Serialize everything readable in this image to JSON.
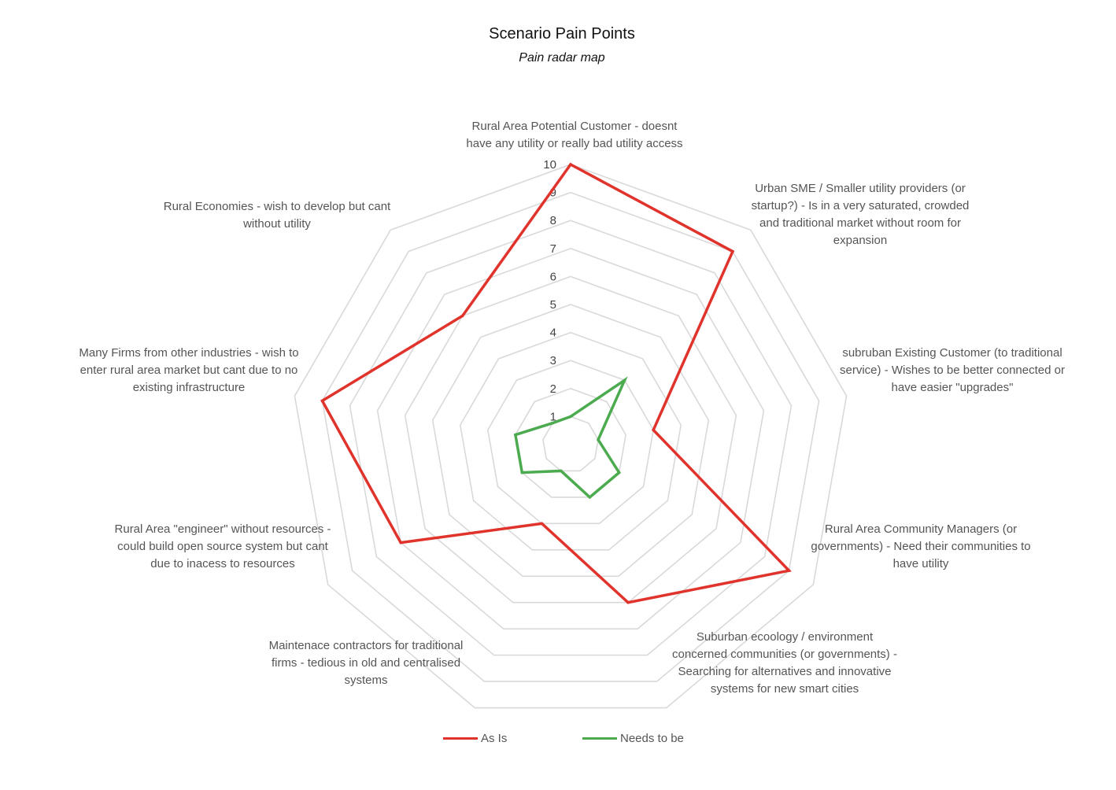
{
  "chart_data": {
    "type": "radar",
    "title": "Scenario Pain Points",
    "subtitle": "Pain radar map",
    "categories": [
      "Rural Area Potential Customer - doesnt have any utility or really bad utility access",
      "Urban SME / Smaller utility providers (or startup?) - Is in a very saturated, crowded and traditional market without room for expansion",
      "subruban Existing Customer (to traditional service) - Wishes to be better connected or have easier \"upgrades\"",
      "Rural Area Community Managers (or governments) - Need their communities to have utility",
      "Suburban ecoology / environment concerned communities (or governments) - Searching for alternatives and innovative systems for new smart cities",
      "Maintenace contractors for traditional firms - tedious in old and centralised systems",
      "Rural Area \"engineer\" without resources - could build open source system but cant due to inacess to resources",
      "Many Firms from other industries - wish to enter rural area market but cant due to no existing infrastructure",
      "Rural Economies - wish to develop but cant without utility"
    ],
    "axis_label_lines": [
      [
        "Rural Area Potential Customer - doesnt",
        "have any utility or really bad utility access"
      ],
      [
        "Urban SME / Smaller utility providers (or",
        "startup?) - Is in a very saturated, crowded",
        "and traditional market without room for",
        "expansion"
      ],
      [
        "subruban Existing Customer (to traditional",
        "service) - Wishes to be better connected or",
        "have easier \"upgrades\""
      ],
      [
        "Rural Area Community Managers (or",
        "governments) - Need their communities to",
        "have utility"
      ],
      [
        "Suburban ecoology / environment",
        "concerned communities (or governments) -",
        "Searching for alternatives and innovative",
        "systems for new smart cities"
      ],
      [
        "Maintenace contractors for traditional",
        "firms - tedious in old and centralised",
        "systems"
      ],
      [
        "Rural Area \"engineer\" without resources -",
        "could build open source system but cant",
        "due to inacess to resources"
      ],
      [
        "Many Firms from other industries - wish to",
        "enter rural area market but cant due to no",
        "existing infrastructure"
      ],
      [
        "Rural Economies - wish to develop but cant",
        "without utility"
      ]
    ],
    "series": [
      {
        "name": "As Is",
        "color": "#e0332b",
        "values": [
          10,
          9,
          3,
          9,
          6,
          3,
          7,
          9,
          6
        ]
      },
      {
        "name": "Needs to be",
        "color": "#4caa4f",
        "values": [
          1,
          3,
          1,
          2,
          2,
          1,
          2,
          2,
          1
        ]
      }
    ],
    "rlim": [
      0,
      10
    ],
    "ticks": [
      1,
      2,
      3,
      4,
      5,
      6,
      7,
      8,
      9,
      10
    ],
    "grid": true,
    "grid_color": "#d9d9d9",
    "legend_position": "bottom"
  }
}
